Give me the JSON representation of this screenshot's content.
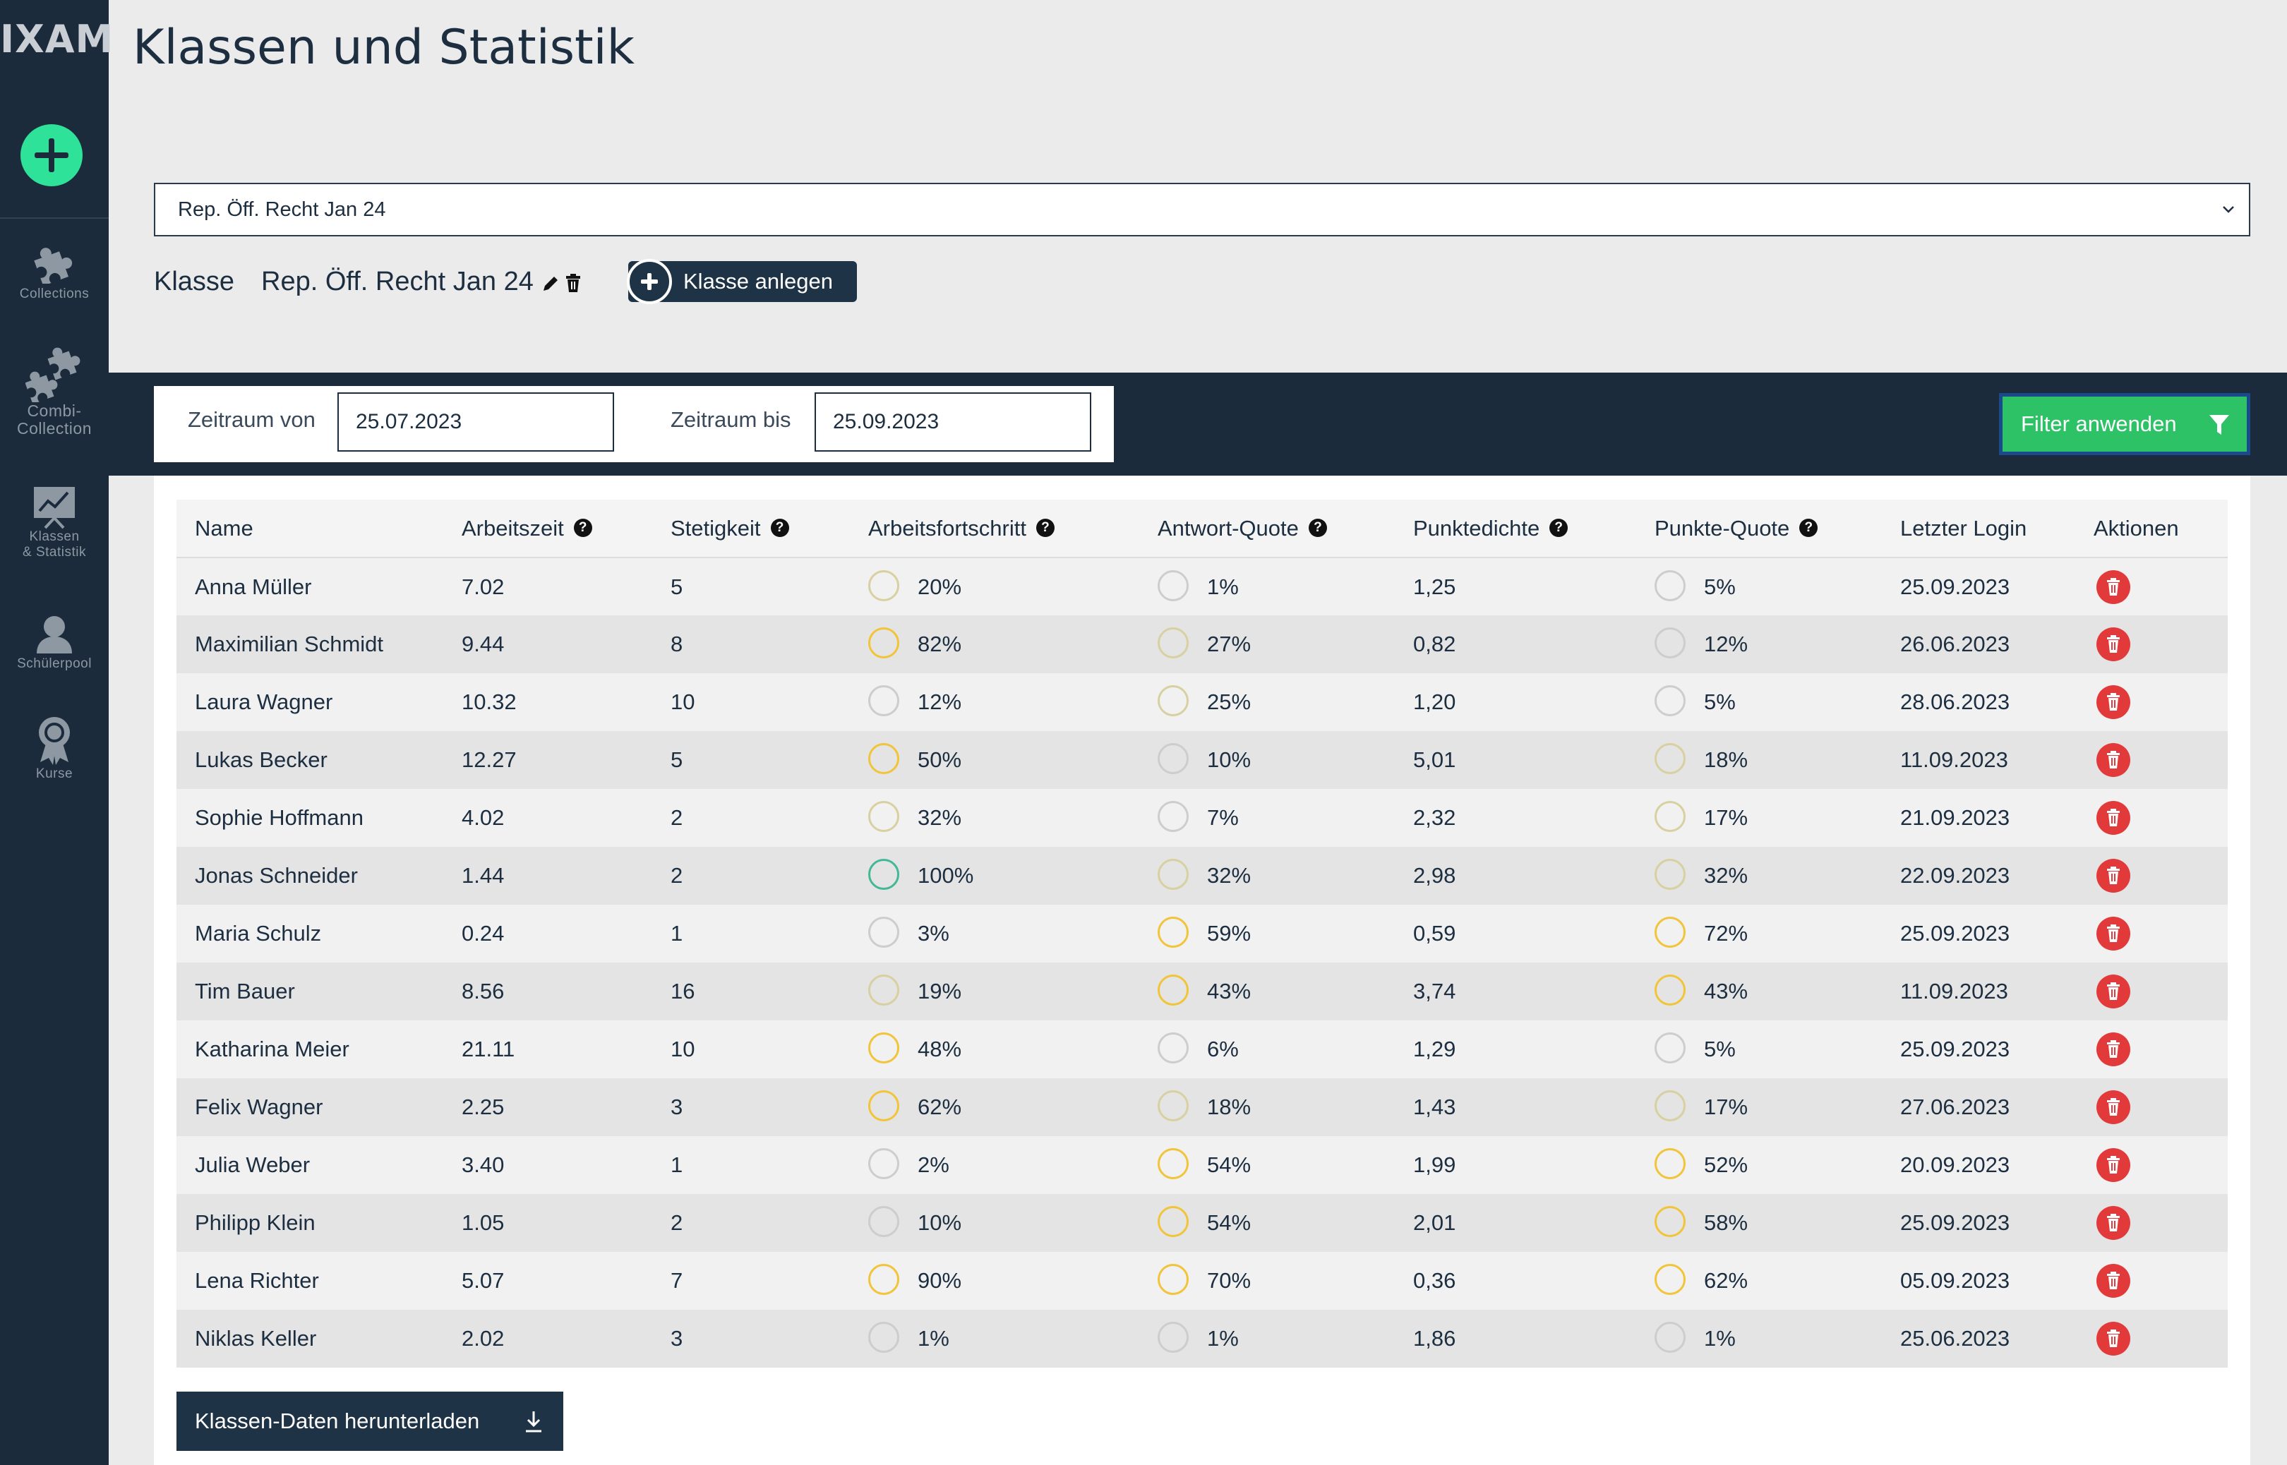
{
  "app": {
    "logo": "IXAM",
    "title": "Klassen und Statistik"
  },
  "sidebar": {
    "items": [
      {
        "id": "collections",
        "label": "Collections",
        "icon": "puzzle-icon"
      },
      {
        "id": "combi",
        "label": "Combi-\nCollection",
        "icon": "puzzles-icon"
      },
      {
        "id": "klassen",
        "label": "Klassen\n& Statistik",
        "icon": "chart-board-icon"
      },
      {
        "id": "schuelerpool",
        "label": "Schülerpool",
        "icon": "person-icon"
      },
      {
        "id": "kurse",
        "label": "Kurse",
        "icon": "award-icon"
      }
    ]
  },
  "class_select": {
    "value": "Rep. Öff. Recht Jan 24"
  },
  "class_header": {
    "label": "Klasse",
    "name": "Rep. Öff. Recht Jan 24",
    "add_label": "Klasse anlegen"
  },
  "filter": {
    "from_label": "Zeitraum von",
    "from_value": "25.07.2023",
    "to_label": "Zeitraum bis",
    "to_value": "25.09.2023",
    "apply_label": "Filter anwenden"
  },
  "table": {
    "columns": [
      "Name",
      "Arbeitszeit",
      "Stetigkeit",
      "Arbeitsfortschritt",
      "Antwort-Quote",
      "Punktedichte",
      "Punkte-Quote",
      "Letzter Login",
      "Aktionen"
    ],
    "rows": [
      [
        "Anna Müller",
        "7.02",
        "5",
        "20%",
        "1%",
        "1,25",
        "5%",
        "25.09.2023"
      ],
      [
        "Maximilian Schmidt",
        "9.44",
        "8",
        "82%",
        "27%",
        "0,82",
        "12%",
        "26.06.2023"
      ],
      [
        "Laura Wagner",
        "10.32",
        "10",
        "12%",
        "25%",
        "1,20",
        "5%",
        "28.06.2023"
      ],
      [
        "Lukas Becker",
        "12.27",
        "5",
        "50%",
        "10%",
        "5,01",
        "18%",
        "11.09.2023"
      ],
      [
        "Sophie Hoffmann",
        "4.02",
        "2",
        "32%",
        "7%",
        "2,32",
        "17%",
        "21.09.2023"
      ],
      [
        "Jonas Schneider",
        "1.44",
        "2",
        "100%",
        "32%",
        "2,98",
        "32%",
        "22.09.2023"
      ],
      [
        "Maria Schulz",
        "0.24",
        "1",
        "3%",
        "59%",
        "0,59",
        "72%",
        "25.09.2023"
      ],
      [
        "Tim Bauer",
        "8.56",
        "16",
        "19%",
        "43%",
        "3,74",
        "43%",
        "11.09.2023"
      ],
      [
        "Katharina Meier",
        "21.11",
        "10",
        "48%",
        "6%",
        "1,29",
        "5%",
        "25.09.2023"
      ],
      [
        "Felix Wagner",
        "2.25",
        "3",
        "62%",
        "18%",
        "1,43",
        "17%",
        "27.06.2023"
      ],
      [
        "Julia Weber",
        "3.40",
        "1",
        "2%",
        "54%",
        "1,99",
        "52%",
        "20.09.2023"
      ],
      [
        "Philipp Klein",
        "1.05",
        "2",
        "10%",
        "54%",
        "2,01",
        "58%",
        "25.09.2023"
      ],
      [
        "Lena Richter",
        "5.07",
        "7",
        "90%",
        "70%",
        "0,36",
        "62%",
        "05.09.2023"
      ],
      [
        "Niklas Keller",
        "2.02",
        "3",
        "1%",
        "1%",
        "1,86",
        "1%",
        "25.06.2023"
      ]
    ]
  },
  "download": {
    "label": "Klassen-Daten herunterladen"
  },
  "colors": {
    "accent_green": "#2ee29a",
    "sidebar": "#1b2b3b",
    "filter_button": "#2ec267",
    "danger": "#e23a3a"
  }
}
